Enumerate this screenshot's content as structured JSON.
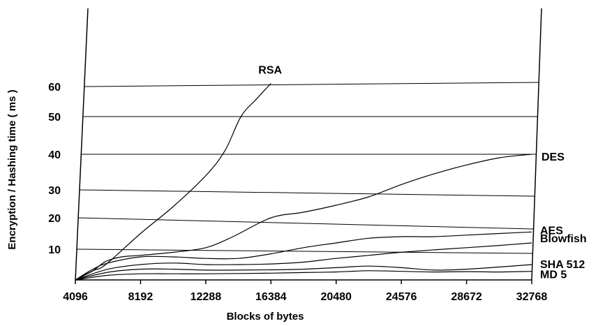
{
  "chart_data": {
    "type": "line",
    "xlabel": "Blocks  of  bytes",
    "ylabel": "Encryption / Hashing time ( ms )",
    "x_ticks": [
      "4096",
      "8192",
      "12288",
      "16384",
      "20480",
      "24576",
      "28672",
      "32768"
    ],
    "y_ticks": [
      "10",
      "20",
      "30",
      "40",
      "50",
      "60"
    ],
    "xlim": [
      4096,
      32768
    ],
    "ylim": [
      0,
      64
    ],
    "grid": true,
    "series": [
      {
        "name": "RSA",
        "x": [
          4096,
          5200,
          6000,
          8192,
          10240,
          12288,
          13500,
          14500,
          15500,
          16384
        ],
        "y": [
          0,
          3,
          5,
          15,
          24,
          34,
          41,
          50,
          56,
          61
        ]
      },
      {
        "name": "DES",
        "x": [
          4096,
          5200,
          6000,
          7000,
          8192,
          10240,
          12288,
          14000,
          16384,
          18432,
          20480,
          22528,
          24576,
          26624,
          28672,
          30720,
          32768
        ],
        "y": [
          0,
          3,
          6,
          7.5,
          8,
          9,
          10.5,
          14,
          20,
          22,
          24.5,
          27.5,
          31.5,
          34.5,
          37,
          39,
          40
        ]
      },
      {
        "name": "AES",
        "x": [
          4096,
          5200,
          6144,
          8192,
          10240,
          12288,
          14336,
          16384,
          18432,
          20480,
          22528,
          24576,
          26624,
          28672,
          30720,
          32768
        ],
        "y": [
          0,
          3.5,
          5.5,
          7.5,
          7.5,
          7,
          7,
          8.5,
          10.5,
          12,
          13.5,
          14,
          14,
          14.5,
          15,
          15.5
        ]
      },
      {
        "name": "Blowfish",
        "x": [
          4096,
          6144,
          8192,
          10240,
          12288,
          14336,
          16384,
          18432,
          20480,
          22528,
          24576,
          26624,
          28672,
          30720,
          32768
        ],
        "y": [
          0,
          3.5,
          5,
          5.5,
          5,
          5,
          5.2,
          5.8,
          7,
          8,
          9,
          9.8,
          10.5,
          11.2,
          12
        ]
      },
      {
        "name": "SHA 512",
        "x": [
          4096,
          6144,
          8192,
          10240,
          12288,
          14336,
          16384,
          18432,
          20480,
          22528,
          24576,
          26624,
          28672,
          30720,
          32768
        ],
        "y": [
          0,
          2.5,
          3.5,
          3.5,
          3.2,
          3.2,
          3.3,
          3.5,
          4,
          4.5,
          4,
          3.2,
          3.5,
          4.2,
          5
        ]
      },
      {
        "name": "MD 5",
        "x": [
          4096,
          6144,
          8192,
          10240,
          12288,
          14336,
          16384,
          18432,
          20480,
          22528,
          24576,
          26624,
          28672,
          30720,
          32768
        ],
        "y": [
          0,
          1.5,
          2,
          2,
          2,
          2.1,
          2.2,
          2.4,
          2.6,
          3,
          2.8,
          2.6,
          2.7,
          2.6,
          2.8
        ]
      }
    ]
  }
}
